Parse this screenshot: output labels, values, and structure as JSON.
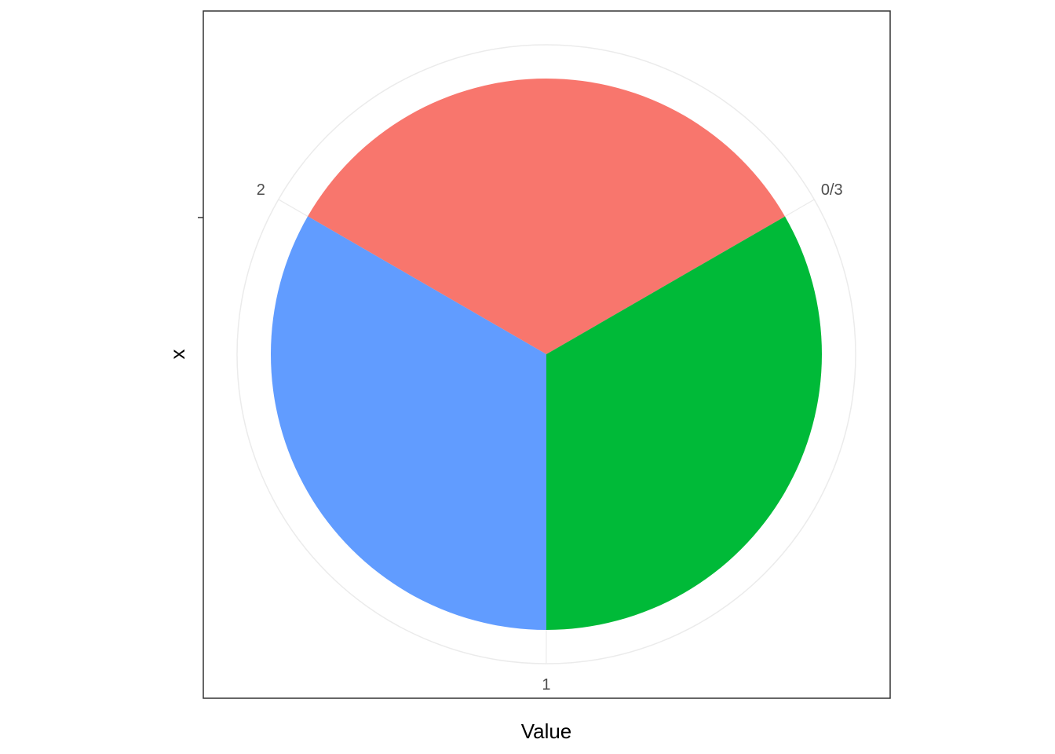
{
  "chart_data": {
    "type": "pie",
    "title": "",
    "xlabel": "Value",
    "ylabel": "x",
    "slices": [
      {
        "value": 1,
        "color": "#F8766D"
      },
      {
        "value": 1,
        "color": "#619CFF"
      },
      {
        "value": 1,
        "color": "#00BA38"
      }
    ],
    "theta_ticks": [
      {
        "value": 0,
        "label": "0/3"
      },
      {
        "value": 1,
        "label": "1"
      },
      {
        "value": 2,
        "label": "2"
      }
    ],
    "theta_range": [
      0,
      3
    ],
    "start_offset_fraction": 0.1667,
    "grid": true,
    "legend": "none",
    "colors": {
      "panel_border": "#333333",
      "grid": "#ebebeb",
      "tick_text": "#4d4d4d"
    }
  }
}
